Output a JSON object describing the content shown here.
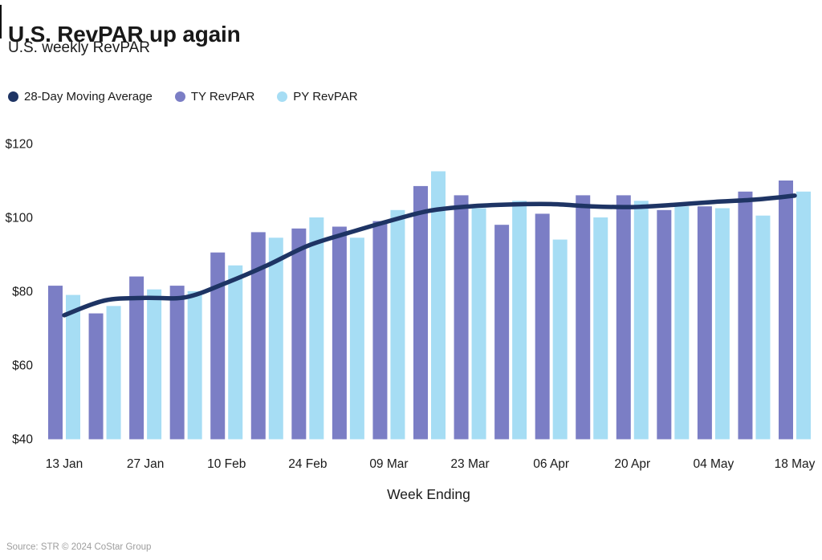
{
  "header": {
    "title": "U.S. RevPAR up again",
    "subtitle": "U.S. weekly RevPAR"
  },
  "legend": {
    "items": [
      {
        "label": "28-Day Moving Average",
        "color": "#1E3464"
      },
      {
        "label": "TY RevPAR",
        "color": "#7B7EC5"
      },
      {
        "label": "PY RevPAR",
        "color": "#A6DDF4"
      }
    ]
  },
  "footer": {
    "source": "Source: STR © 2024 CoStar Group"
  },
  "chart_data": {
    "type": "bar",
    "title": "U.S. RevPAR up again",
    "subtitle": "U.S. weekly RevPAR",
    "xlabel": "Week Ending",
    "ylabel": "",
    "y_tick_prefix": "$",
    "y_ticks": [
      40,
      60,
      80,
      100,
      120
    ],
    "ylim": [
      40,
      120
    ],
    "grid": false,
    "n_points": 19,
    "x_tick_labels": [
      "13 Jan",
      "27 Jan",
      "10 Feb",
      "24 Feb",
      "09 Mar",
      "23 Mar",
      "06 Apr",
      "20 Apr",
      "04 May",
      "18 May"
    ],
    "x_tick_every": 2,
    "legend_position": "top-left",
    "series": [
      {
        "name": "TY RevPAR",
        "kind": "bar",
        "color": "#7B7EC5",
        "values": [
          81.5,
          74,
          84,
          81.5,
          90.5,
          96,
          97,
          97.5,
          99,
          108.5,
          106,
          98,
          101,
          106,
          106,
          102,
          103,
          107,
          110
        ]
      },
      {
        "name": "PY RevPAR",
        "kind": "bar",
        "color": "#A6DDF4",
        "values": [
          79,
          76,
          80.5,
          80,
          87,
          94.5,
          100,
          94.5,
          102,
          112.5,
          102.5,
          104.5,
          94,
          100,
          104.5,
          103,
          102.5,
          100.5,
          107
        ]
      },
      {
        "name": "28-Day Moving Average",
        "kind": "line",
        "color": "#1E3464",
        "values": [
          73.5,
          77.5,
          78.2,
          78.4,
          82.3,
          87,
          92.3,
          95.8,
          99,
          101.8,
          103,
          103.5,
          103.6,
          103,
          102.8,
          103.4,
          104.2,
          104.8,
          105.9
        ]
      }
    ]
  }
}
